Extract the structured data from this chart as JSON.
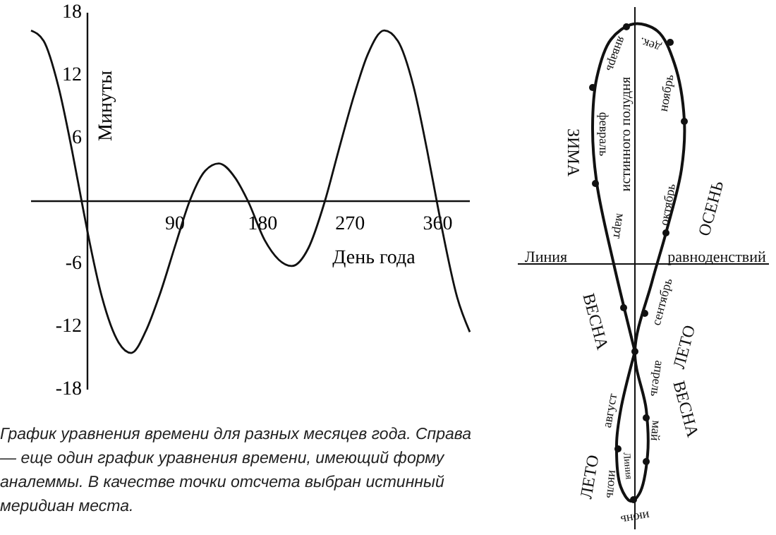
{
  "chart_data": [
    {
      "type": "line",
      "xlabel": "День года",
      "ylabel": "Минуты",
      "x": [
        -58,
        -45,
        -30,
        -16,
        -6,
        0,
        15,
        32,
        45,
        60,
        74,
        91,
        105,
        121,
        135,
        152,
        165,
        182,
        210,
        227,
        244,
        258,
        274,
        288,
        305,
        319,
        335,
        349,
        359,
        365,
        380,
        393
      ],
      "series": [
        {
          "color": "#111111",
          "values": [
            16.3,
            15.3,
            11,
            4.9,
            0,
            -2.9,
            -9.2,
            -13.5,
            -14.5,
            -12.4,
            -9,
            -4,
            0,
            2.9,
            3.6,
            2.2,
            0,
            -3.7,
            -6.2,
            -4.5,
            0,
            4.8,
            10.1,
            14,
            16.3,
            15.3,
            11,
            4.9,
            0,
            -2.9,
            -9.2,
            -12.5
          ]
        }
      ],
      "xlim": [
        -58,
        393
      ],
      "xticks": [
        90,
        180,
        270,
        360
      ],
      "ylim": [
        -18,
        18
      ],
      "yticks": [
        18,
        12,
        6,
        -6,
        -12,
        -18
      ],
      "marker": "none",
      "line_style": "solid",
      "grid": false,
      "annotations": [
        "График уравнения времени для разных месяцев года. Справа — еще один график уравнения времени, имеющий форму аналеммы. В качестве точки отсчета выбран истинный меридиан места."
      ]
    },
    {
      "type": "other",
      "annotations": [
        "Линия",
        "равноденствий",
        "истинного полудня",
        "Линия",
        "январь",
        "февраль",
        "март",
        "апрель",
        "май",
        "июнь",
        "июль",
        "август",
        "сентябрь",
        "октябрь",
        "ноябрь",
        "дек.",
        "ЗИМА",
        "ОСЕНЬ",
        "ВЕСНА",
        "ЛЕТО",
        "ВЕСНА",
        "ЛЕТО"
      ]
    }
  ]
}
